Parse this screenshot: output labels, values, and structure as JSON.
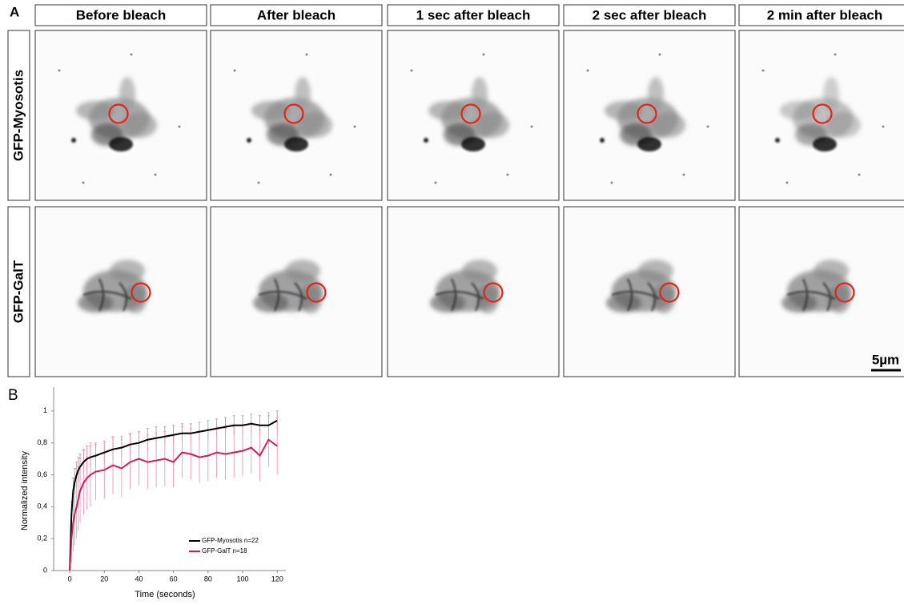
{
  "panel_labels": [
    "A",
    "B"
  ],
  "panel_a": {
    "column_headers": [
      "Before bleach",
      "After bleach",
      "1 sec after bleach",
      "2 sec after bleach",
      "2 min after bleach"
    ],
    "row_labels": [
      "GFP-Myosotis",
      "GFP-GalT"
    ],
    "scale_bar": "5µm"
  },
  "chart_data": {
    "type": "line",
    "xlabel": "Time (seconds)",
    "ylabel": "Normalized intensity",
    "xlim": [
      -9.3,
      125
    ],
    "ylim": [
      0,
      1.15
    ],
    "xticks": [
      0,
      20,
      40,
      60,
      80,
      100,
      120
    ],
    "yticks": [
      0,
      {
        "value": 0.2,
        "label": "0,2"
      },
      {
        "value": 0.4,
        "label": "0,4"
      },
      {
        "value": 0.6,
        "label": "0,6"
      },
      {
        "value": 0.8,
        "label": "0,8"
      },
      1
    ],
    "x": [
      0,
      1,
      2,
      3,
      4,
      5,
      6,
      8,
      10,
      12,
      15,
      20,
      25,
      30,
      35,
      40,
      45,
      50,
      55,
      60,
      65,
      70,
      75,
      80,
      85,
      90,
      95,
      100,
      105,
      110,
      115,
      120
    ],
    "series": [
      {
        "name": "GFP-Myosotis n=22",
        "color": "#000000",
        "error_color": "#999999",
        "values": [
          0,
          0.35,
          0.5,
          0.56,
          0.6,
          0.63,
          0.65,
          0.68,
          0.7,
          0.71,
          0.72,
          0.74,
          0.76,
          0.77,
          0.79,
          0.8,
          0.82,
          0.83,
          0.84,
          0.85,
          0.86,
          0.86,
          0.87,
          0.88,
          0.89,
          0.9,
          0.91,
          0.91,
          0.92,
          0.91,
          0.91,
          0.94
        ],
        "errors": [
          0,
          0.08,
          0.08,
          0.08,
          0.08,
          0.08,
          0.08,
          0.08,
          0.08,
          0.07,
          0.07,
          0.07,
          0.07,
          0.07,
          0.07,
          0.07,
          0.07,
          0.07,
          0.06,
          0.06,
          0.06,
          0.06,
          0.06,
          0.06,
          0.06,
          0.06,
          0.06,
          0.06,
          0.06,
          0.06,
          0.06,
          0.06
        ]
      },
      {
        "name": "GFP-GalT n=18",
        "color": "#cc1f5a",
        "error_color": "#f08ab0",
        "values": [
          0,
          0.2,
          0.3,
          0.36,
          0.4,
          0.45,
          0.5,
          0.55,
          0.58,
          0.6,
          0.62,
          0.63,
          0.66,
          0.64,
          0.68,
          0.7,
          0.68,
          0.69,
          0.7,
          0.68,
          0.74,
          0.73,
          0.71,
          0.72,
          0.74,
          0.73,
          0.74,
          0.75,
          0.77,
          0.72,
          0.82,
          0.78
        ],
        "errors": [
          0,
          0.15,
          0.18,
          0.2,
          0.2,
          0.2,
          0.2,
          0.2,
          0.2,
          0.2,
          0.18,
          0.18,
          0.18,
          0.18,
          0.17,
          0.17,
          0.17,
          0.17,
          0.17,
          0.16,
          0.16,
          0.16,
          0.16,
          0.16,
          0.16,
          0.16,
          0.16,
          0.16,
          0.16,
          0.16,
          0.17,
          0.18
        ]
      }
    ],
    "legend": "lower right"
  }
}
